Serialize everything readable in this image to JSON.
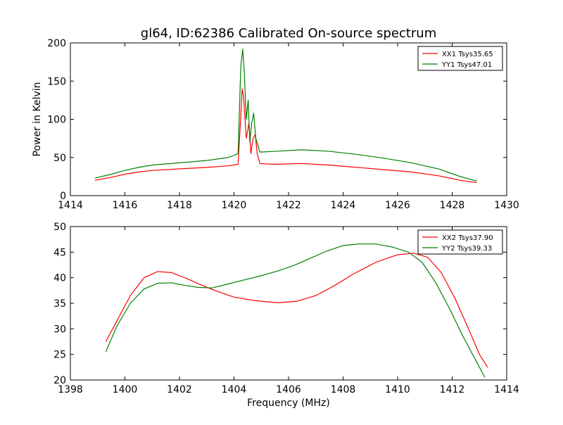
{
  "figure": {
    "title": "gl64, ID:62386 Calibrated On-source spectrum"
  },
  "chart_data": [
    {
      "type": "line",
      "title": "gl64, ID:62386 Calibrated On-source spectrum",
      "xlabel": "",
      "ylabel": "Power in Kelvin",
      "xlim": [
        1414,
        1430
      ],
      "ylim": [
        0,
        200
      ],
      "xticks": [
        1414,
        1416,
        1418,
        1420,
        1422,
        1424,
        1426,
        1428,
        1430
      ],
      "yticks": [
        0,
        50,
        100,
        150,
        200
      ],
      "grid": false,
      "legend_position": "top-right",
      "series": [
        {
          "name": "XX1 Tsys35.65",
          "color": "#ff0000",
          "points": [
            [
              1414.9,
              20
            ],
            [
              1415.5,
              24
            ],
            [
              1416,
              28
            ],
            [
              1416.5,
              31
            ],
            [
              1417,
              33
            ],
            [
              1418,
              35
            ],
            [
              1419,
              37
            ],
            [
              1419.8,
              39
            ],
            [
              1420.15,
              41
            ],
            [
              1420.25,
              105
            ],
            [
              1420.3,
              140
            ],
            [
              1420.35,
              130
            ],
            [
              1420.45,
              75
            ],
            [
              1420.55,
              95
            ],
            [
              1420.62,
              55
            ],
            [
              1420.7,
              75
            ],
            [
              1420.78,
              80
            ],
            [
              1420.85,
              55
            ],
            [
              1420.95,
              42
            ],
            [
              1421.5,
              41
            ],
            [
              1422.5,
              42
            ],
            [
              1423.5,
              40
            ],
            [
              1424.5,
              37
            ],
            [
              1425.5,
              34
            ],
            [
              1426.5,
              31
            ],
            [
              1427.5,
              26
            ],
            [
              1428.3,
              20
            ],
            [
              1428.9,
              17
            ]
          ]
        },
        {
          "name": "YY1 Tsys47.01",
          "color": "#008000",
          "points": [
            [
              1414.9,
              23
            ],
            [
              1415.5,
              28
            ],
            [
              1416,
              33
            ],
            [
              1416.5,
              37
            ],
            [
              1417,
              40
            ],
            [
              1418,
              43
            ],
            [
              1419,
              46
            ],
            [
              1419.8,
              50
            ],
            [
              1420.15,
              55
            ],
            [
              1420.25,
              170
            ],
            [
              1420.32,
              192
            ],
            [
              1420.38,
              160
            ],
            [
              1420.45,
              100
            ],
            [
              1420.52,
              125
            ],
            [
              1420.58,
              70
            ],
            [
              1420.65,
              95
            ],
            [
              1420.72,
              108
            ],
            [
              1420.8,
              75
            ],
            [
              1420.95,
              57
            ],
            [
              1421.5,
              58
            ],
            [
              1422.5,
              60
            ],
            [
              1423.5,
              58
            ],
            [
              1424.5,
              54
            ],
            [
              1425.5,
              49
            ],
            [
              1426.5,
              43
            ],
            [
              1427.5,
              35
            ],
            [
              1428.3,
              25
            ],
            [
              1428.9,
              19
            ]
          ]
        }
      ]
    },
    {
      "type": "line",
      "title": "",
      "xlabel": "Frequency (MHz)",
      "ylabel": "",
      "xlim": [
        1398,
        1414
      ],
      "ylim": [
        20,
        50
      ],
      "xticks": [
        1398,
        1400,
        1402,
        1404,
        1406,
        1408,
        1410,
        1412,
        1414
      ],
      "yticks": [
        20,
        25,
        30,
        35,
        40,
        45,
        50
      ],
      "grid": false,
      "legend_position": "top-right",
      "series": [
        {
          "name": "XX2 Tsys37.90",
          "color": "#ff0000",
          "points": [
            [
              1399.3,
              27.5
            ],
            [
              1399.7,
              31.5
            ],
            [
              1400.2,
              36.5
            ],
            [
              1400.7,
              40
            ],
            [
              1401.2,
              41.2
            ],
            [
              1401.7,
              41
            ],
            [
              1402.2,
              40
            ],
            [
              1402.7,
              38.8
            ],
            [
              1403.3,
              37.5
            ],
            [
              1404,
              36.2
            ],
            [
              1404.8,
              35.5
            ],
            [
              1405.6,
              35.1
            ],
            [
              1406.3,
              35.4
            ],
            [
              1407,
              36.5
            ],
            [
              1407.7,
              38.5
            ],
            [
              1408.4,
              40.8
            ],
            [
              1409.2,
              43
            ],
            [
              1410,
              44.5
            ],
            [
              1410.6,
              44.8
            ],
            [
              1411.1,
              44
            ],
            [
              1411.6,
              41
            ],
            [
              1412.1,
              36
            ],
            [
              1412.6,
              30
            ],
            [
              1413,
              25
            ],
            [
              1413.3,
              22.5
            ]
          ]
        },
        {
          "name": "YY2 Tsys39.33",
          "color": "#008000",
          "points": [
            [
              1399.3,
              25.5
            ],
            [
              1399.7,
              30.5
            ],
            [
              1400.2,
              35
            ],
            [
              1400.7,
              37.8
            ],
            [
              1401.2,
              38.9
            ],
            [
              1401.7,
              39
            ],
            [
              1402.2,
              38.5
            ],
            [
              1402.7,
              38.1
            ],
            [
              1403.2,
              38
            ],
            [
              1403.8,
              38.8
            ],
            [
              1404.4,
              39.6
            ],
            [
              1405,
              40.4
            ],
            [
              1405.6,
              41.3
            ],
            [
              1406.2,
              42.4
            ],
            [
              1406.8,
              43.8
            ],
            [
              1407.4,
              45.2
            ],
            [
              1408,
              46.3
            ],
            [
              1408.6,
              46.6
            ],
            [
              1409.2,
              46.6
            ],
            [
              1409.8,
              46
            ],
            [
              1410.4,
              45
            ],
            [
              1410.9,
              43
            ],
            [
              1411.4,
              39
            ],
            [
              1411.9,
              34
            ],
            [
              1412.4,
              28.5
            ],
            [
              1412.9,
              23.5
            ],
            [
              1413.2,
              20.5
            ]
          ]
        }
      ]
    }
  ]
}
